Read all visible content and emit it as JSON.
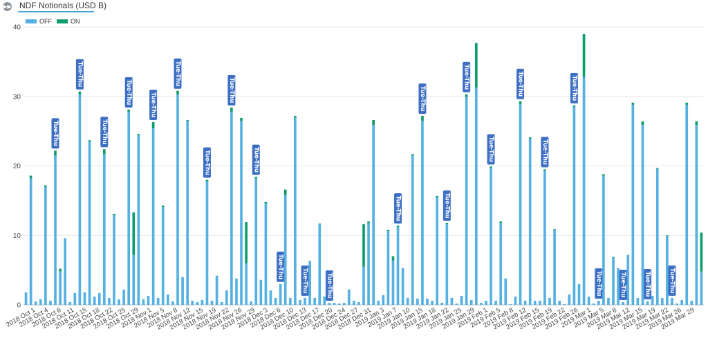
{
  "header": {
    "expand_icon": "fast-forward-icon",
    "title": "NDF Notionals (USD B)"
  },
  "colors": {
    "off": "#56b1e3",
    "on": "#0e9d6b",
    "annotation": "#3d6fc5",
    "grid": "#e8e8e8"
  },
  "chart_data": {
    "type": "bar",
    "stacked": true,
    "title": "NDF Notionals (USD B)",
    "xlabel": "",
    "ylabel": "",
    "ylim": [
      0,
      40
    ],
    "yticks": [
      0,
      10,
      20,
      30,
      40
    ],
    "grid": true,
    "legend": {
      "placement": "top-left",
      "entries": [
        "OFF",
        "ON"
      ]
    },
    "categories": [
      "2018 Oct 1",
      "2018 Oct 4",
      "2018 Oct 8",
      "2018 Oct 11",
      "2018 Oct 15",
      "2018 Oct 18",
      "2018 Oct 22",
      "2018 Oct 25",
      "2018 Oct 29",
      "2018 Nov 1",
      "2018 Nov 5",
      "2018 Nov 8",
      "2018 Nov 12",
      "2018 Nov 15",
      "2018 Nov 19",
      "2018 Nov 22",
      "2018 Nov 26",
      "2018 Nov 29",
      "2018 Dec 3",
      "2018 Dec 6",
      "2018 Dec 10",
      "2018 Dec 13",
      "2018 Dec 17",
      "2018 Dec 20",
      "2018 Dec 24",
      "2018 Dec 27",
      "2018 Dec 31",
      "2019 Jan 3",
      "2019 Jan 7",
      "2019 Jan 10",
      "2019 Jan 15",
      "2019 Jan 18",
      "2019 Jan 22",
      "2019 Jan 25",
      "2019 Jan 29",
      "2019 Feb 1",
      "2019 Feb 5",
      "2019 Feb 8",
      "2019 Feb 12",
      "2019 Feb 15",
      "2019 Feb 19",
      "2019 Feb 22",
      "2019 Feb 26",
      "2019 Mar 1",
      "2019 Mar 5",
      "2019 Mar 8",
      "2019 Mar 12",
      "2019 Mar 15",
      "2019 Mar 19",
      "2019 Mar 22",
      "2019 Mar 26",
      "2019 Mar 29"
    ],
    "off_values": [
      1.8,
      18.2,
      0.5,
      0.8,
      17.0,
      0.6,
      21.5,
      4.8,
      9.6,
      0.4,
      1.7,
      30.3,
      1.8,
      23.5,
      1.2,
      1.7,
      21.7,
      1.0,
      12.9,
      0.8,
      2.2,
      27.8,
      7.2,
      24.4,
      0.8,
      1.3,
      25.4,
      1.0,
      14.1,
      1.5,
      0.5,
      30.3,
      4.0,
      26.5,
      0.6,
      0.4,
      0.7,
      17.8,
      0.6,
      4.2,
      0.4,
      2.1,
      27.8,
      3.8,
      26.5,
      6.0,
      0.5,
      18.2,
      3.6,
      14.6,
      2.1,
      1.0,
      3.0,
      15.8,
      1.0,
      27.0,
      0.7,
      1.0,
      6.2,
      1.0,
      11.6,
      1.2,
      0.3,
      0.3,
      0.2,
      0.3,
      2.1,
      0.6,
      0.4,
      5.5,
      11.8,
      25.9,
      0.6,
      1.4,
      10.6,
      6.4,
      11.2,
      5.3,
      1.0,
      21.5,
      0.9,
      26.5,
      0.9,
      0.6,
      15.5,
      0.3,
      11.6,
      1.0,
      0.2,
      1.3,
      29.9,
      0.7,
      31.3,
      0.3,
      0.6,
      19.7,
      0.6,
      11.8,
      3.8,
      0.1,
      1.2,
      28.9,
      0.6,
      23.9,
      0.6,
      0.6,
      19.3,
      1.0,
      10.8,
      0.6,
      0.1,
      1.5,
      28.5,
      3.0,
      32.8,
      1.2,
      0.2,
      0.6,
      18.6,
      1.0,
      6.8,
      5.3,
      0.4,
      7.2,
      28.8,
      1.0,
      25.9,
      0.5,
      1.3,
      19.6,
      1.0,
      9.9,
      1.0,
      0.2,
      0.7,
      28.8,
      0.6,
      25.9,
      4.8
    ],
    "on_values": [
      0,
      0.4,
      0,
      0,
      0.2,
      0,
      0.7,
      0.4,
      0,
      0,
      0,
      0.4,
      0,
      0.2,
      0,
      0,
      0.7,
      0,
      0.2,
      0,
      0,
      0.3,
      6.1,
      0.2,
      0,
      0,
      0.9,
      0,
      0.2,
      0,
      0,
      0.5,
      0,
      0.1,
      0,
      0,
      0,
      0.2,
      0,
      0,
      0,
      0,
      0.6,
      0,
      0.4,
      5.9,
      0,
      0.2,
      0,
      0.2,
      0,
      0,
      0,
      0.8,
      0,
      0.2,
      0,
      0,
      0.1,
      0,
      0.1,
      0,
      0,
      0,
      0,
      0,
      0.1,
      0,
      0,
      6.1,
      0.2,
      0.7,
      0,
      0,
      0.2,
      0.6,
      0.2,
      0,
      0,
      0.2,
      0,
      0.7,
      0,
      0,
      0.2,
      0,
      0.2,
      0,
      0,
      0,
      0.4,
      0,
      6.4,
      0,
      0,
      0.2,
      0,
      0.2,
      0,
      0,
      0,
      0.4,
      0,
      0.2,
      0,
      0,
      0.2,
      0,
      0.1,
      0,
      0,
      0,
      0.2,
      0,
      6.2,
      0,
      0,
      0,
      0.2,
      0,
      0.1,
      0,
      0,
      0,
      0.3,
      0,
      0.5,
      0,
      0,
      0.1,
      0,
      0.1,
      0,
      0,
      0,
      0.3,
      0,
      0.5,
      5.6
    ],
    "annotations": [
      {
        "bar": 6,
        "text": "Tue-Thu"
      },
      {
        "bar": 11,
        "text": "Tue-Thu"
      },
      {
        "bar": 16,
        "text": "Tue-Thu"
      },
      {
        "bar": 21,
        "text": "Tue-Thu"
      },
      {
        "bar": 26,
        "text": "Tue-Thu"
      },
      {
        "bar": 31,
        "text": "Tue-Thu"
      },
      {
        "bar": 37,
        "text": "Tue-Thu"
      },
      {
        "bar": 42,
        "text": "Tue-Thu"
      },
      {
        "bar": 47,
        "text": "Tue-Thu"
      },
      {
        "bar": 52,
        "text": "Tue-Thu"
      },
      {
        "bar": 57,
        "text": "Tue-Thu"
      },
      {
        "bar": 62,
        "text": "Tue-Thu"
      },
      {
        "bar": 76,
        "text": "Tue-Thu"
      },
      {
        "bar": 81,
        "text": "Tue-Thu"
      },
      {
        "bar": 86,
        "text": "Tue-Thu"
      },
      {
        "bar": 90,
        "text": "Tue-Thu"
      },
      {
        "bar": 95,
        "text": "Tue-Thu"
      },
      {
        "bar": 101,
        "text": "Tue-Thu"
      },
      {
        "bar": 106,
        "text": "Tue-Thu"
      },
      {
        "bar": 112,
        "text": "Tue-Thu"
      },
      {
        "bar": 117,
        "text": "Tue-Thu"
      },
      {
        "bar": 122,
        "text": "Tue-Thu"
      },
      {
        "bar": 127,
        "text": "Tue-Thu"
      },
      {
        "bar": 132,
        "text": "Tue-Thu"
      }
    ]
  }
}
